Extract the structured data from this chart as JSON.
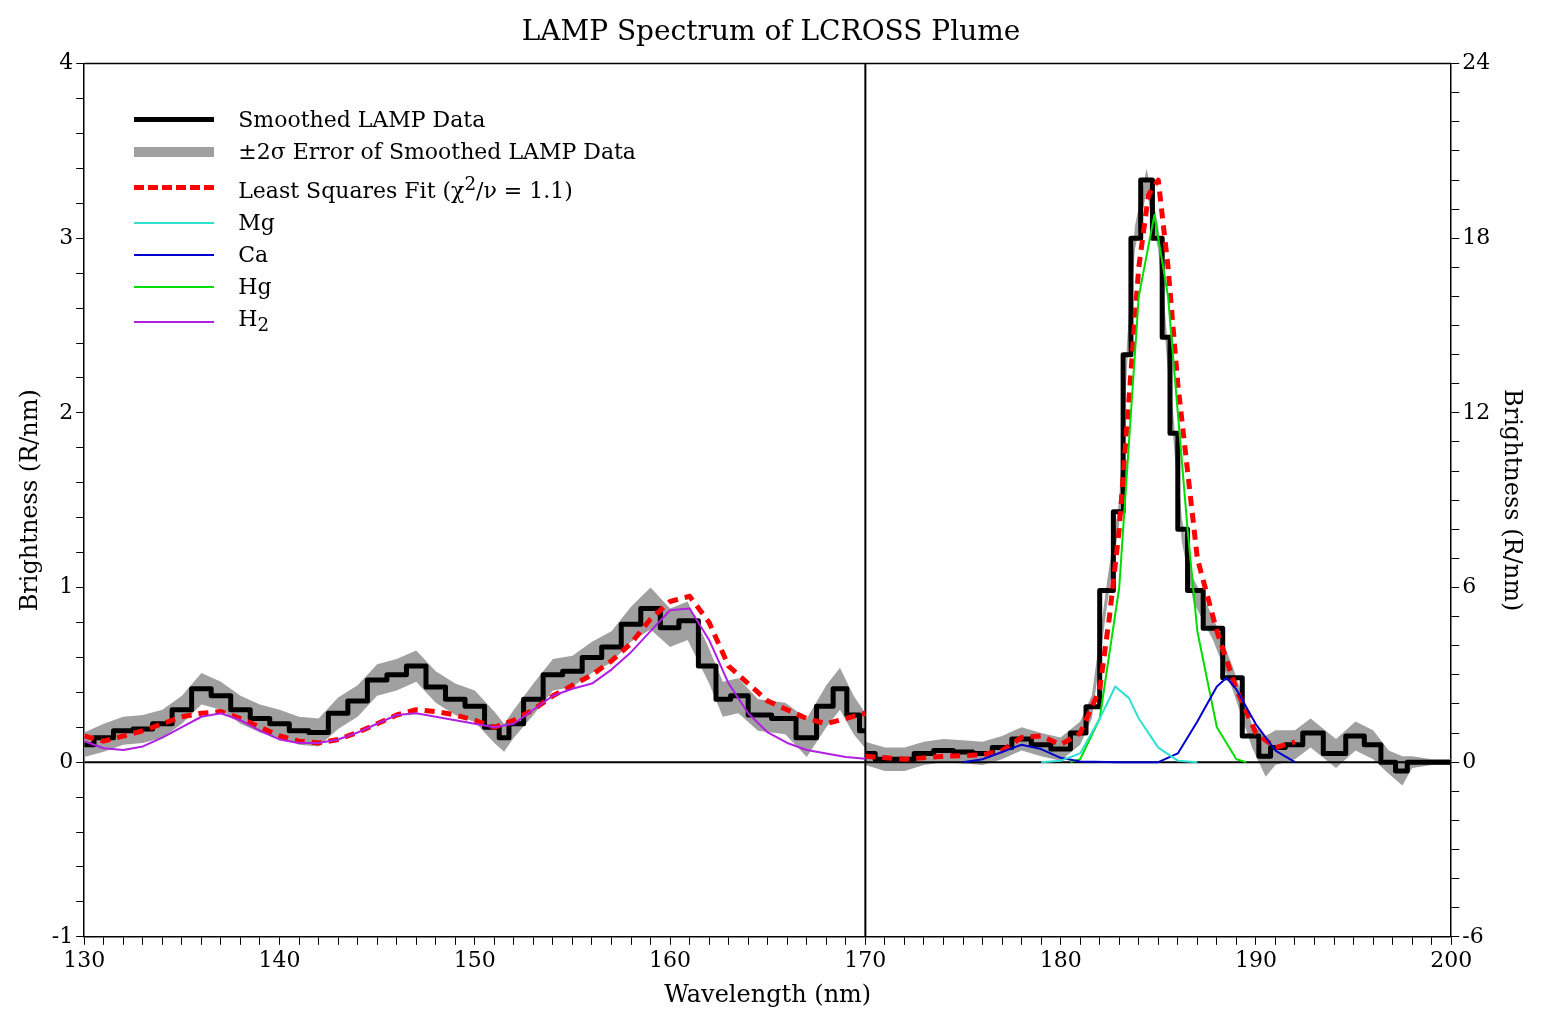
{
  "chart_data": {
    "type": "line",
    "title": "LAMP Spectrum of LCROSS Plume",
    "xlabel": "Wavelength (nm)",
    "ylabel": "Brightness (R/nm)",
    "y2label": "Brightness (R/nm)",
    "legend": "top left",
    "annotations": [
      "±2σ Error of Smoothed LAMP Data"
    ],
    "xlim": [
      130,
      200
    ],
    "xticks": [
      130,
      {
        "value": 131,
        "label": null
      },
      {
        "value": 132,
        "label": null
      },
      {
        "value": 133,
        "label": null
      },
      {
        "value": 134,
        "label": null
      },
      {
        "value": 135,
        "label": null
      },
      {
        "value": 136,
        "label": null
      },
      {
        "value": 137,
        "label": null
      },
      {
        "value": 138,
        "label": null
      },
      {
        "value": 139,
        "label": null
      },
      140,
      {
        "value": 141,
        "label": null
      },
      {
        "value": 142,
        "label": null
      },
      {
        "value": 143,
        "label": null
      },
      {
        "value": 144,
        "label": null
      },
      {
        "value": 145,
        "label": null
      },
      {
        "value": 146,
        "label": null
      },
      {
        "value": 147,
        "label": null
      },
      {
        "value": 148,
        "label": null
      },
      {
        "value": 149,
        "label": null
      },
      150,
      {
        "value": 151,
        "label": null
      },
      {
        "value": 152,
        "label": null
      },
      {
        "value": 153,
        "label": null
      },
      {
        "value": 154,
        "label": null
      },
      {
        "value": 155,
        "label": null
      },
      {
        "value": 156,
        "label": null
      },
      {
        "value": 157,
        "label": null
      },
      {
        "value": 158,
        "label": null
      },
      {
        "value": 159,
        "label": null
      },
      160,
      {
        "value": 161,
        "label": null
      },
      {
        "value": 162,
        "label": null
      },
      {
        "value": 163,
        "label": null
      },
      {
        "value": 164,
        "label": null
      },
      {
        "value": 165,
        "label": null
      },
      {
        "value": 166,
        "label": null
      },
      {
        "value": 167,
        "label": null
      },
      {
        "value": 168,
        "label": null
      },
      {
        "value": 169,
        "label": null
      },
      170,
      {
        "value": 171,
        "label": null
      },
      {
        "value": 172,
        "label": null
      },
      {
        "value": 173,
        "label": null
      },
      {
        "value": 174,
        "label": null
      },
      {
        "value": 175,
        "label": null
      },
      {
        "value": 176,
        "label": null
      },
      {
        "value": 177,
        "label": null
      },
      {
        "value": 178,
        "label": null
      },
      {
        "value": 179,
        "label": null
      },
      180,
      {
        "value": 181,
        "label": null
      },
      {
        "value": 182,
        "label": null
      },
      {
        "value": 183,
        "label": null
      },
      {
        "value": 184,
        "label": null
      },
      {
        "value": 185,
        "label": null
      },
      {
        "value": 186,
        "label": null
      },
      {
        "value": 187,
        "label": null
      },
      {
        "value": 188,
        "label": null
      },
      {
        "value": 189,
        "label": null
      },
      190,
      {
        "value": 191,
        "label": null
      },
      {
        "value": 192,
        "label": null
      },
      {
        "value": 193,
        "label": null
      },
      {
        "value": 194,
        "label": null
      },
      {
        "value": 195,
        "label": null
      },
      {
        "value": 196,
        "label": null
      },
      {
        "value": 197,
        "label": null
      },
      {
        "value": 198,
        "label": null
      },
      {
        "value": 199,
        "label": null
      },
      200
    ],
    "ylim": [
      -1,
      4
    ],
    "yticks": [
      -1,
      {
        "value": -0.8,
        "label": null
      },
      {
        "value": -0.6,
        "label": null
      },
      {
        "value": -0.4,
        "label": null
      },
      {
        "value": -0.2,
        "label": null
      },
      0,
      {
        "value": 0.2,
        "label": null
      },
      {
        "value": 0.4,
        "label": null
      },
      {
        "value": 0.6,
        "label": null
      },
      {
        "value": 0.8,
        "label": null
      },
      1,
      {
        "value": 1.2,
        "label": null
      },
      {
        "value": 1.4,
        "label": null
      },
      {
        "value": 1.6,
        "label": null
      },
      {
        "value": 1.8,
        "label": null
      },
      2,
      {
        "value": 2.2,
        "label": null
      },
      {
        "value": 2.4,
        "label": null
      },
      {
        "value": 2.6,
        "label": null
      },
      {
        "value": 2.8,
        "label": null
      },
      3,
      {
        "value": 3.2,
        "label": null
      },
      {
        "value": 3.4,
        "label": null
      },
      {
        "value": 3.6,
        "label": null
      },
      {
        "value": 3.8,
        "label": null
      },
      4
    ],
    "y2lim": [
      -6,
      24
    ],
    "y2ticks": [
      -6,
      {
        "value": -5,
        "label": null
      },
      {
        "value": -4,
        "label": null
      },
      {
        "value": -3,
        "label": null
      },
      {
        "value": -2,
        "label": null
      },
      {
        "value": -1,
        "label": null
      },
      0,
      {
        "value": 1,
        "label": null
      },
      {
        "value": 2,
        "label": null
      },
      {
        "value": 3,
        "label": null
      },
      {
        "value": 4,
        "label": null
      },
      {
        "value": 5,
        "label": null
      },
      6,
      {
        "value": 7,
        "label": null
      },
      {
        "value": 8,
        "label": null
      },
      {
        "value": 9,
        "label": null
      },
      {
        "value": 10,
        "label": null
      },
      {
        "value": 11,
        "label": null
      },
      12,
      {
        "value": 13,
        "label": null
      },
      {
        "value": 14,
        "label": null
      },
      {
        "value": 15,
        "label": null
      },
      {
        "value": 16,
        "label": null
      },
      {
        "value": 17,
        "label": null
      },
      18,
      {
        "value": 19,
        "label": null
      },
      {
        "value": 20,
        "label": null
      },
      {
        "value": 21,
        "label": null
      },
      {
        "value": 22,
        "label": null
      },
      {
        "value": 23,
        "label": null
      },
      24
    ],
    "ref_lines": [
      {
        "axis": "x",
        "value": 170,
        "color": "#000000"
      },
      {
        "axis": "y",
        "value": 0,
        "color": "#000000"
      }
    ],
    "series": [
      {
        "name": "Smoothed LAMP Data",
        "type": "step",
        "color": "#000000",
        "x": [
          130,
          131,
          132,
          133,
          134,
          135,
          136,
          137,
          138,
          139,
          140,
          141,
          142,
          143,
          144,
          145,
          146,
          147,
          148,
          149,
          150,
          151,
          151.5,
          152,
          153,
          154,
          155,
          156,
          157,
          158,
          159,
          160,
          160.9,
          162,
          162.7,
          163.5,
          164.5,
          165.9,
          167,
          168,
          168.7,
          169.4,
          170
        ],
        "values": [
          0.1,
          0.14,
          0.18,
          0.19,
          0.22,
          0.3,
          0.42,
          0.38,
          0.3,
          0.25,
          0.22,
          0.18,
          0.17,
          0.28,
          0.35,
          0.47,
          0.5,
          0.55,
          0.43,
          0.36,
          0.32,
          0.2,
          0.14,
          0.22,
          0.36,
          0.5,
          0.52,
          0.6,
          0.66,
          0.79,
          0.88,
          0.77,
          0.81,
          0.55,
          0.36,
          0.38,
          0.27,
          0.25,
          0.14,
          0.32,
          0.42,
          0.27,
          0.18
        ],
        "lower": [
          0.03,
          0.06,
          0.1,
          0.11,
          0.14,
          0.22,
          0.33,
          0.3,
          0.22,
          0.17,
          0.14,
          0.1,
          0.09,
          0.19,
          0.26,
          0.38,
          0.41,
          0.46,
          0.34,
          0.27,
          0.23,
          0.11,
          0.06,
          0.14,
          0.27,
          0.41,
          0.43,
          0.51,
          0.57,
          0.69,
          0.76,
          0.66,
          0.7,
          0.45,
          0.26,
          0.28,
          0.18,
          0.16,
          0.03,
          0.2,
          0.3,
          0.16,
          0.08
        ],
        "upper": [
          0.17,
          0.22,
          0.26,
          0.27,
          0.3,
          0.38,
          0.51,
          0.46,
          0.38,
          0.33,
          0.3,
          0.26,
          0.25,
          0.37,
          0.44,
          0.56,
          0.59,
          0.64,
          0.52,
          0.45,
          0.41,
          0.29,
          0.22,
          0.3,
          0.45,
          0.59,
          0.61,
          0.69,
          0.75,
          0.89,
          1.0,
          0.88,
          0.92,
          0.65,
          0.46,
          0.48,
          0.36,
          0.34,
          0.25,
          0.44,
          0.54,
          0.38,
          0.28
        ]
      },
      {
        "name": "Least Squares Fit (χ$^{2}$/ν = 1.1)",
        "line_style": "dashed",
        "color": "#ff0000",
        "x": [
          130,
          131,
          132,
          133,
          134,
          135,
          136,
          137,
          138,
          139,
          140,
          141,
          142,
          143,
          144,
          145,
          146,
          147,
          148,
          149,
          150,
          151,
          152,
          153,
          154,
          155,
          156,
          157,
          158,
          159,
          160,
          161,
          162,
          163,
          164,
          165,
          166,
          167,
          168,
          169,
          170
        ],
        "values": [
          0.15,
          0.12,
          0.15,
          0.18,
          0.22,
          0.26,
          0.28,
          0.29,
          0.25,
          0.2,
          0.15,
          0.12,
          0.11,
          0.13,
          0.17,
          0.22,
          0.27,
          0.3,
          0.29,
          0.27,
          0.24,
          0.2,
          0.24,
          0.3,
          0.38,
          0.44,
          0.5,
          0.58,
          0.68,
          0.82,
          0.92,
          0.95,
          0.8,
          0.55,
          0.45,
          0.35,
          0.3,
          0.25,
          0.22,
          0.25,
          0.28
        ]
      },
      {
        "name": "Mg",
        "axis": "y2",
        "color": "#30e0d0",
        "x": [
          179,
          180,
          181,
          182,
          182.8,
          183.5,
          184,
          185,
          186,
          187
        ],
        "values": [
          0,
          0.05,
          0.3,
          1.5,
          2.6,
          2.2,
          1.5,
          0.5,
          0.05,
          0
        ]
      },
      {
        "name": "Ca",
        "axis": "y2",
        "color": "#0000cc",
        "x": [
          175,
          176,
          177,
          178,
          179,
          180,
          181,
          183,
          185,
          186,
          187,
          188,
          188.5,
          189,
          190,
          191,
          192
        ],
        "values": [
          0,
          0.1,
          0.35,
          0.6,
          0.45,
          0.15,
          0.02,
          0,
          0,
          0.3,
          1.4,
          2.6,
          2.9,
          2.5,
          1.3,
          0.4,
          0
        ]
      },
      {
        "name": "Hg",
        "axis": "y2",
        "color": "#00dd00",
        "x": [
          180.5,
          181,
          182,
          183,
          183.5,
          184,
          184.8,
          185.5,
          186,
          186.5,
          187,
          188,
          189,
          189.5
        ],
        "values": [
          0,
          0.1,
          1.5,
          6,
          11,
          16,
          18.8,
          16,
          12,
          8,
          4.5,
          1.2,
          0.1,
          0
        ]
      },
      {
        "name": "H$_{2}$",
        "color": "#b020e0",
        "x": [
          130,
          131,
          132,
          133,
          134,
          135,
          136,
          137,
          138,
          139,
          140,
          141,
          142,
          143,
          144,
          145,
          146,
          147,
          148,
          149,
          150,
          151,
          152,
          153,
          154,
          155,
          156,
          157,
          158,
          159,
          160,
          161,
          162,
          163,
          164,
          165,
          166,
          167,
          168,
          169,
          170
        ],
        "values": [
          0.12,
          0.08,
          0.07,
          0.09,
          0.14,
          0.2,
          0.26,
          0.28,
          0.24,
          0.18,
          0.13,
          0.11,
          0.11,
          0.13,
          0.17,
          0.22,
          0.27,
          0.28,
          0.26,
          0.24,
          0.22,
          0.2,
          0.22,
          0.3,
          0.38,
          0.42,
          0.45,
          0.53,
          0.63,
          0.75,
          0.87,
          0.88,
          0.7,
          0.45,
          0.28,
          0.17,
          0.11,
          0.07,
          0.05,
          0.03,
          0.02
        ]
      },
      {
        "type": "step",
        "axis": "y2",
        "color": "#000000",
        "x": [
          170,
          171,
          172,
          173,
          174,
          175,
          176,
          177,
          178,
          179,
          180,
          181,
          181.6,
          182.4,
          183,
          183.4,
          183.8,
          184.4,
          185,
          185.4,
          185.8,
          186.2,
          186.8,
          187.8,
          188.8,
          189.8,
          190.5,
          191,
          192,
          192.8,
          194.1,
          195.1,
          196,
          196.8,
          197.5,
          198,
          199,
          200
        ],
        "values": [
          0.3,
          0.1,
          0.1,
          0.3,
          0.4,
          0.35,
          0.3,
          0.5,
          0.8,
          0.6,
          0.45,
          1.0,
          1.9,
          5.9,
          8.6,
          14.0,
          18.0,
          20.0,
          18.0,
          14.6,
          11.3,
          8.0,
          5.9,
          4.6,
          2.9,
          0.9,
          0.2,
          0.5,
          0.6,
          1.0,
          0.3,
          0.9,
          0.6,
          0.0,
          -0.3,
          0.0,
          0.0,
          0.0
        ],
        "lower": [
          -0.1,
          -0.3,
          -0.3,
          -0.1,
          0.0,
          -0.05,
          -0.1,
          0.1,
          0.4,
          0.2,
          0.05,
          0.6,
          1.5,
          5.5,
          8.2,
          13.6,
          17.6,
          19.6,
          17.6,
          14.2,
          10.9,
          7.6,
          5.5,
          4.2,
          2.5,
          0.5,
          -0.5,
          -0.1,
          0.1,
          0.5,
          -0.2,
          0.4,
          0.1,
          -0.4,
          -0.8,
          -0.2,
          -0.1,
          -0.1
        ],
        "upper": [
          0.7,
          0.5,
          0.5,
          0.7,
          0.8,
          0.75,
          0.7,
          0.9,
          1.2,
          1.0,
          0.85,
          1.4,
          2.3,
          6.3,
          9.0,
          14.4,
          18.4,
          20.4,
          18.4,
          15.0,
          11.7,
          8.4,
          6.3,
          5.0,
          3.3,
          1.3,
          0.9,
          1.1,
          1.1,
          1.5,
          0.8,
          1.4,
          1.1,
          0.4,
          0.2,
          0.2,
          0.1,
          0.1
        ]
      },
      {
        "axis": "y2",
        "line_style": "dashed",
        "color": "#ff0000",
        "x": [
          170,
          172,
          174,
          176,
          177,
          178,
          179,
          180,
          181,
          182,
          182.5,
          183,
          183.5,
          184,
          184.5,
          185,
          185.5,
          186,
          186.5,
          187,
          188,
          189,
          190,
          191,
          192
        ],
        "values": [
          0.2,
          0.1,
          0.2,
          0.25,
          0.4,
          0.85,
          0.9,
          0.6,
          1.0,
          2.5,
          5.0,
          8.0,
          12.5,
          17.0,
          19.5,
          20.0,
          17.0,
          13.0,
          10.0,
          7.0,
          4.5,
          2.5,
          1.0,
          0.5,
          0.7
        ]
      }
    ]
  }
}
